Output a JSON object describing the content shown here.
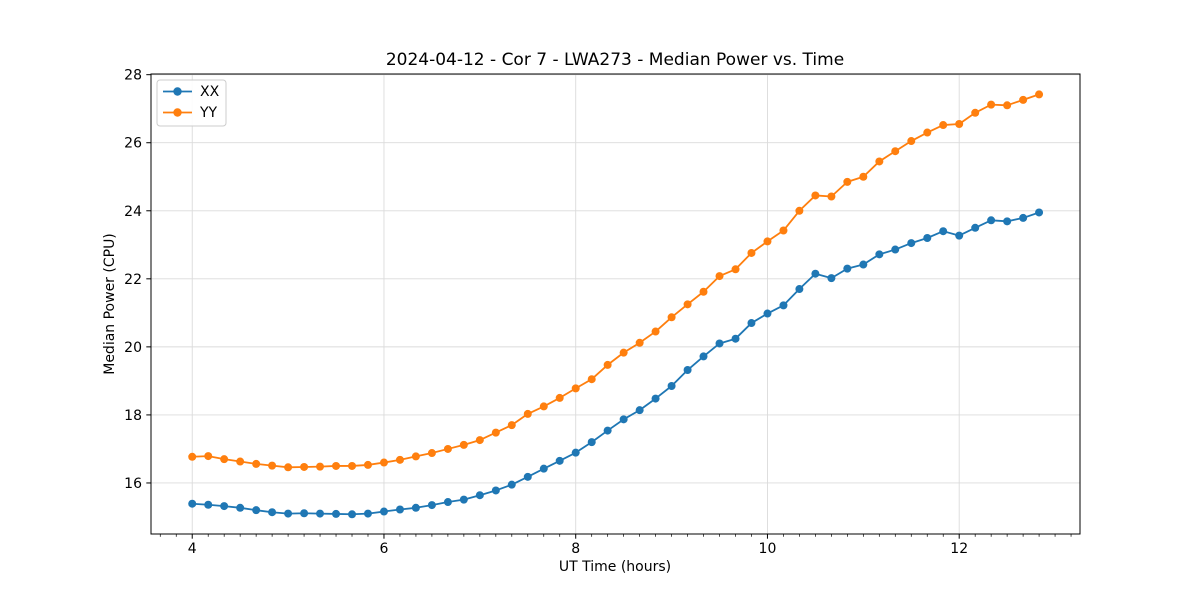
{
  "figure": {
    "background": "#ffffff"
  },
  "chart_data": {
    "type": "line",
    "title": "2024-04-12 - Cor 7 - LWA273 - Median Power vs. Time",
    "xlabel": "UT Time (hours)",
    "ylabel": "Median Power (CPU)",
    "xlim": [
      3.57,
      13.26
    ],
    "ylim": [
      14.5,
      28.02
    ],
    "x_ticks": [
      4,
      6,
      8,
      10,
      12
    ],
    "y_ticks": [
      16,
      18,
      20,
      22,
      24,
      26,
      28
    ],
    "x_minor_tick_step": 0.1666667,
    "grid": true,
    "grid_color": "#dbdbdb",
    "legend_position": "upper left",
    "x": [
      4,
      4.167,
      4.333,
      4.5,
      4.667,
      4.833,
      5,
      5.167,
      5.333,
      5.5,
      5.667,
      5.833,
      6,
      6.167,
      6.333,
      6.5,
      6.667,
      6.833,
      7,
      7.167,
      7.333,
      7.5,
      7.667,
      7.833,
      8,
      8.167,
      8.333,
      8.5,
      8.667,
      8.833,
      9,
      9.167,
      9.333,
      9.5,
      9.667,
      9.833,
      10,
      10.167,
      10.333,
      10.5,
      10.667,
      10.833,
      11,
      11.167,
      11.333,
      11.5,
      11.667,
      11.833,
      12,
      12.167,
      12.333,
      12.5,
      12.667,
      12.833
    ],
    "series": [
      {
        "name": "XX",
        "color": "#1f77b4",
        "marker": "circle",
        "values": [
          15.39,
          15.36,
          15.32,
          15.27,
          15.2,
          15.14,
          15.1,
          15.11,
          15.1,
          15.09,
          15.08,
          15.1,
          15.16,
          15.22,
          15.27,
          15.35,
          15.44,
          15.51,
          15.64,
          15.78,
          15.95,
          16.18,
          16.42,
          16.65,
          16.89,
          17.2,
          17.54,
          17.87,
          18.14,
          18.48,
          18.85,
          19.32,
          19.72,
          20.1,
          20.24,
          20.7,
          20.98,
          21.22,
          21.7,
          22.15,
          22.02,
          22.3,
          22.42,
          22.72,
          22.86,
          23.05,
          23.2,
          23.4,
          23.27,
          23.5,
          23.72,
          23.69,
          23.79,
          23.95
        ]
      },
      {
        "name": "YY",
        "color": "#ff7f0e",
        "marker": "circle",
        "values": [
          16.77,
          16.79,
          16.7,
          16.63,
          16.56,
          16.51,
          16.46,
          16.47,
          16.48,
          16.5,
          16.5,
          16.53,
          16.6,
          16.68,
          16.78,
          16.88,
          17.0,
          17.12,
          17.26,
          17.48,
          17.7,
          18.03,
          18.25,
          18.5,
          18.78,
          19.05,
          19.47,
          19.83,
          20.12,
          20.45,
          20.87,
          21.25,
          21.62,
          22.08,
          22.28,
          22.76,
          23.1,
          23.42,
          24.0,
          24.45,
          24.42,
          24.85,
          25.0,
          25.45,
          25.75,
          26.05,
          26.3,
          26.52,
          26.55,
          26.88,
          27.12,
          27.1,
          27.26,
          27.42
        ]
      }
    ]
  }
}
